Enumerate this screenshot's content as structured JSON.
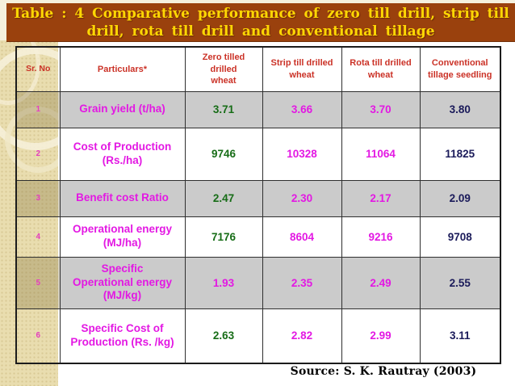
{
  "title": {
    "text": "Table : 4 Comparative performance of zero till drill, strip till\ndrill, rota till drill and conventional tillage"
  },
  "table": {
    "headers": [
      "Sr. No",
      "Particulars*",
      "Zero  tilled\ndrilled\nwheat",
      "Strip till drilled\nwheat",
      "Rota till drilled\nwheat",
      "Conventional\ntillage seedling"
    ],
    "rows": [
      {
        "sr": "1",
        "label": "Grain yield (t/ha)",
        "values": [
          {
            "v": "3.71",
            "c": "green"
          },
          {
            "v": "3.66",
            "c": "magenta"
          },
          {
            "v": "3.70",
            "c": "magenta"
          },
          {
            "v": "3.80",
            "c": "navy"
          }
        ]
      },
      {
        "sr": "2",
        "label": "Cost of Production\n(Rs./ha)",
        "values": [
          {
            "v": "9746",
            "c": "green"
          },
          {
            "v": "10328",
            "c": "magenta"
          },
          {
            "v": "11064",
            "c": "magenta"
          },
          {
            "v": "11825",
            "c": "navy"
          }
        ]
      },
      {
        "sr": "3",
        "label": "Benefit cost Ratio",
        "values": [
          {
            "v": "2.47",
            "c": "green"
          },
          {
            "v": "2.30",
            "c": "magenta"
          },
          {
            "v": "2.17",
            "c": "magenta"
          },
          {
            "v": "2.09",
            "c": "navy"
          }
        ]
      },
      {
        "sr": "4",
        "label": "Operational energy\n(MJ/ha)",
        "values": [
          {
            "v": "7176",
            "c": "green"
          },
          {
            "v": "8604",
            "c": "magenta"
          },
          {
            "v": "9216",
            "c": "magenta"
          },
          {
            "v": "9708",
            "c": "navy"
          }
        ]
      },
      {
        "sr": "5",
        "label": "Specific\nOperational energy\n(MJ/kg)",
        "values": [
          {
            "v": "1.93",
            "c": "magenta"
          },
          {
            "v": "2.35",
            "c": "magenta"
          },
          {
            "v": "2.49",
            "c": "magenta"
          },
          {
            "v": "2.55",
            "c": "navy"
          }
        ]
      },
      {
        "sr": "6",
        "label": "Specific Cost of\nProduction (Rs. /kg)",
        "values": [
          {
            "v": "2.63",
            "c": "green"
          },
          {
            "v": "2.82",
            "c": "magenta"
          },
          {
            "v": "2.99",
            "c": "magenta"
          },
          {
            "v": "3.11",
            "c": "navy"
          }
        ]
      }
    ]
  },
  "source": {
    "text": "Source: S. K. Rautray (2003)"
  },
  "colors": {
    "green": "#176D17",
    "magenta": "#E318E3",
    "navy": "#1B1B5A",
    "title_bg": "#9A410D",
    "title_text": "#FFD703",
    "header_text": "#CB3227",
    "sr_number": "#E53FBF",
    "row_gray": "#CBCBCB",
    "strip_beige": "#E9DDAF"
  }
}
